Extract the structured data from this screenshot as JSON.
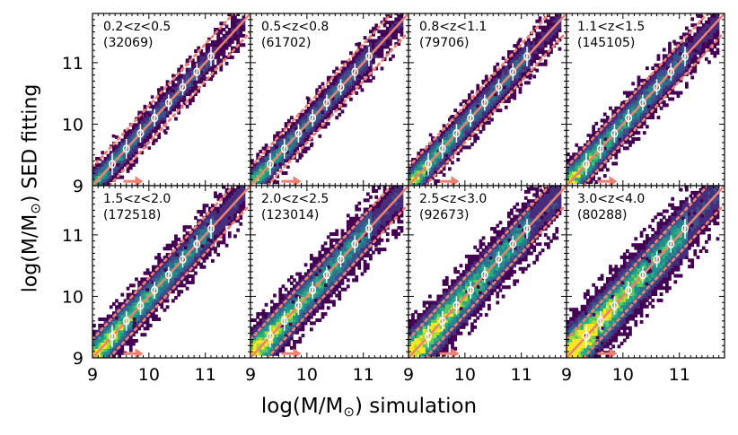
{
  "figure": {
    "xlabel_main": "log(M/M",
    "xlabel_sun": "⊙",
    "xlabel_tail": ") simulation",
    "ylabel_main": "log(M/M",
    "ylabel_sun": "⊙",
    "ylabel_tail": ") SED fitting",
    "colors": {
      "one_to_one": "#f08070",
      "median_marker": "#ffffff",
      "arrow": "#f08070"
    }
  },
  "chart_data": {
    "type": "heatmap",
    "layout": "2x4 grid of panels, shared axes",
    "xlabel": "log(M/M⊙) simulation",
    "ylabel": "log(M/M⊙) SED fitting",
    "xlim": [
      9,
      11.8
    ],
    "ylim": [
      9,
      11.8
    ],
    "xticks": [
      9,
      10,
      11
    ],
    "yticks": [
      9,
      10,
      11
    ],
    "xticklabels": [
      "9",
      "10",
      "11"
    ],
    "yticklabels": [
      "9",
      "10",
      "11"
    ],
    "one_to_one_line": [
      [
        9,
        9
      ],
      [
        11.8,
        11.8
      ]
    ],
    "scatter_band_offsets_dex": [
      0.3,
      -0.3
    ],
    "arrow_x": [
      9.55,
      9.9
    ],
    "panels": [
      {
        "redshift": "0.2<z<0.5",
        "count": "(32069)",
        "arrow_y": 9.07,
        "scatter_dex": 0.12,
        "median_start": 9.25
      },
      {
        "redshift": "0.5<z<0.8",
        "count": "(61702)",
        "arrow_y": 9.07,
        "scatter_dex": 0.13,
        "median_start": 9.25
      },
      {
        "redshift": "0.8<z<1.1",
        "count": "(79706)",
        "arrow_y": 9.07,
        "scatter_dex": 0.14,
        "median_start": 9.25
      },
      {
        "redshift": "1.1<z<1.5",
        "count": "(145105)",
        "arrow_y": 9.07,
        "scatter_dex": 0.16,
        "median_start": 9.25
      },
      {
        "redshift": "1.5<z<2.0",
        "count": "(172518)",
        "arrow_y": 9.07,
        "scatter_dex": 0.17,
        "median_start": 9.25
      },
      {
        "redshift": "2.0<z<2.5",
        "count": "(123014)",
        "arrow_y": 9.07,
        "scatter_dex": 0.19,
        "median_start": 9.25
      },
      {
        "redshift": "2.5<z<3.0",
        "count": "(92673)",
        "arrow_y": 9.07,
        "scatter_dex": 0.21,
        "median_start": 9.35
      },
      {
        "redshift": "3.0<z<4.0",
        "count": "(80288)",
        "arrow_y": 9.07,
        "scatter_dex": 0.23,
        "median_start": 9.35
      }
    ],
    "median_x": [
      9.35,
      9.6,
      9.85,
      10.1,
      10.35,
      10.6,
      10.85,
      11.1
    ],
    "median_errors_dex": [
      0.18,
      0.16,
      0.15,
      0.14,
      0.13,
      0.13,
      0.14,
      0.16
    ]
  }
}
